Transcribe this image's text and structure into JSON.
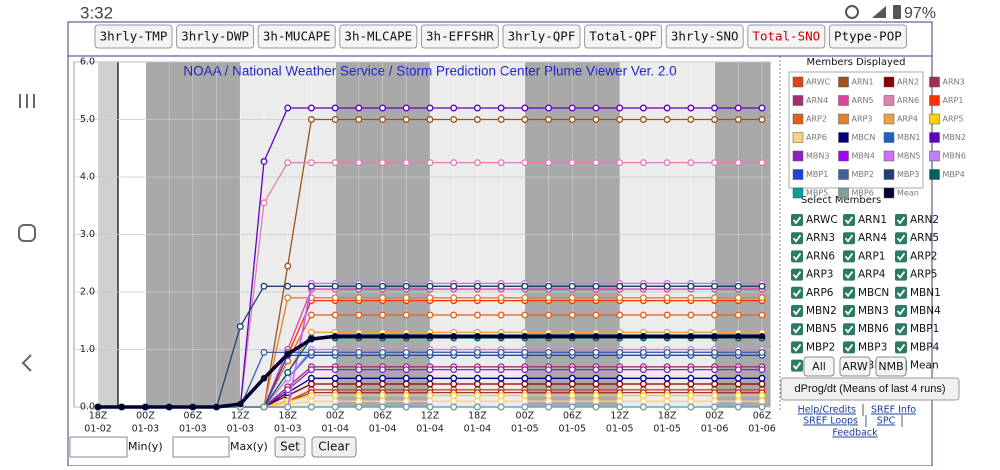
{
  "status_bar": {
    "time": "3:32",
    "battery": "97%"
  },
  "tabs": [
    {
      "label": "3hrly-TMP",
      "selected": false
    },
    {
      "label": "3hrly-DWP",
      "selected": false
    },
    {
      "label": "3h-MUCAPE",
      "selected": false
    },
    {
      "label": "3h-MLCAPE",
      "selected": false
    },
    {
      "label": "3h-EFFSHR",
      "selected": false
    },
    {
      "label": "3hrly-QPF",
      "selected": false
    },
    {
      "label": "Total-QPF",
      "selected": false
    },
    {
      "label": "3hrly-SNO",
      "selected": false
    },
    {
      "label": "Total-SNO",
      "selected": true
    },
    {
      "label": "Ptype-POP",
      "selected": false
    }
  ],
  "chart_data": {
    "type": "line",
    "title": "NOAA / National Weather Service / Storm Prediction Center Plume Viewer Ver. 2.0",
    "x_hours": [
      "18Z",
      null,
      "00Z",
      null,
      "06Z",
      null,
      "12Z",
      null,
      "18Z",
      null,
      "00Z",
      null,
      "06Z",
      null,
      "12Z",
      null,
      "18Z",
      null,
      "00Z",
      null,
      "06Z",
      null,
      "12Z",
      null,
      "18Z",
      null,
      "00Z",
      null,
      "06Z"
    ],
    "x_dates": [
      "01-02",
      null,
      "01-03",
      null,
      "01-03",
      null,
      "01-03",
      null,
      "01-03",
      null,
      "01-04",
      null,
      "01-04",
      null,
      "01-04",
      null,
      "01-04",
      null,
      "01-05",
      null,
      "01-05",
      null,
      "01-05",
      null,
      "01-05",
      null,
      "01-06",
      null,
      "01-06"
    ],
    "ylim": [
      0,
      6
    ],
    "yticks": [
      {
        "value": 0,
        "label": "0.0"
      },
      {
        "value": 1,
        "label": "1.0"
      },
      {
        "value": 2,
        "label": "2.0"
      },
      {
        "value": 3,
        "label": "3.0"
      },
      {
        "value": 4,
        "label": "4.0"
      },
      {
        "value": 5,
        "label": "5.0"
      },
      {
        "value": 6,
        "label": "6.0"
      }
    ],
    "grid": true,
    "legend_title": "Members Displayed",
    "series": [
      {
        "name": "ARWC",
        "color": "#e0401a",
        "values": [
          0,
          0,
          0,
          0,
          0,
          0,
          0,
          0,
          0.1,
          0.3,
          0.3,
          0.3,
          0.3,
          0.3,
          0.3,
          0.3,
          0.3,
          0.3,
          0.3,
          0.3,
          0.3,
          0.3,
          0.3,
          0.3,
          0.3,
          0.3,
          0.3,
          0.3,
          0.3
        ]
      },
      {
        "name": "ARN1",
        "color": "#a0521a",
        "values": [
          0,
          0,
          0,
          0,
          0,
          0,
          0,
          0,
          2.45,
          5,
          5,
          5,
          5,
          5,
          5,
          5,
          5,
          5,
          5,
          5,
          5,
          5,
          5,
          5,
          5,
          5,
          5,
          5,
          5
        ]
      },
      {
        "name": "ARN2",
        "color": "#8b0000",
        "values": [
          0,
          0,
          0,
          0,
          0,
          0,
          0,
          0,
          0.2,
          0.4,
          0.4,
          0.4,
          0.4,
          0.4,
          0.4,
          0.4,
          0.4,
          0.4,
          0.4,
          0.4,
          0.4,
          0.4,
          0.4,
          0.4,
          0.4,
          0.4,
          0.4,
          0.4,
          0.4
        ]
      },
      {
        "name": "ARN3",
        "color": "#a0304a",
        "values": [
          0,
          0,
          0,
          0,
          0,
          0,
          0,
          0,
          0.1,
          0.25,
          0.25,
          0.25,
          0.25,
          0.25,
          0.25,
          0.25,
          0.25,
          0.25,
          0.25,
          0.25,
          0.25,
          0.25,
          0.25,
          0.25,
          0.25,
          0.25,
          0.25,
          0.25,
          0.25
        ]
      },
      {
        "name": "ARN4",
        "color": "#a03070",
        "values": [
          0,
          0,
          0,
          0,
          0,
          0,
          0,
          0,
          0.35,
          0.7,
          0.7,
          0.7,
          0.7,
          0.7,
          0.7,
          0.7,
          0.7,
          0.7,
          0.7,
          0.7,
          0.7,
          0.7,
          0.7,
          0.7,
          0.7,
          0.7,
          0.7,
          0.7,
          0.7
        ]
      },
      {
        "name": "ARN5",
        "color": "#e040a0",
        "values": [
          0,
          0,
          0,
          0,
          0,
          0,
          0,
          0,
          1.0,
          2.05,
          2.05,
          2.05,
          2.05,
          2.05,
          2.05,
          2.05,
          2.05,
          2.05,
          2.05,
          2.05,
          2.05,
          2.05,
          2.05,
          2.05,
          2.05,
          2.05,
          2.05,
          2.05,
          2.05
        ]
      },
      {
        "name": "ARN6",
        "color": "#e080b0",
        "values": [
          0,
          0,
          0,
          0,
          0,
          0,
          0,
          3.55,
          4.25,
          4.25,
          4.25,
          4.25,
          4.25,
          4.25,
          4.25,
          4.25,
          4.25,
          4.25,
          4.25,
          4.25,
          4.25,
          4.25,
          4.25,
          4.25,
          4.25,
          4.25,
          4.25,
          4.25,
          4.25
        ]
      },
      {
        "name": "ARP1",
        "color": "#ff3000",
        "values": [
          0,
          0,
          0,
          0,
          0,
          0,
          0,
          0,
          0.9,
          1.85,
          1.85,
          1.85,
          1.85,
          1.85,
          1.85,
          1.85,
          1.85,
          1.85,
          1.85,
          1.85,
          1.85,
          1.85,
          1.85,
          1.85,
          1.85,
          1.85,
          1.85,
          1.85,
          1.85
        ]
      },
      {
        "name": "ARP2",
        "color": "#e06020",
        "values": [
          0,
          0,
          0,
          0,
          0,
          0,
          0,
          0,
          0.8,
          1.6,
          1.6,
          1.6,
          1.6,
          1.6,
          1.6,
          1.6,
          1.6,
          1.6,
          1.6,
          1.6,
          1.6,
          1.6,
          1.6,
          1.6,
          1.6,
          1.6,
          1.6,
          1.6,
          1.6
        ]
      },
      {
        "name": "ARP3",
        "color": "#e08030",
        "values": [
          0,
          0,
          0,
          0,
          0,
          0,
          0,
          0,
          1.9,
          1.9,
          1.9,
          1.9,
          1.9,
          1.9,
          1.9,
          1.9,
          1.9,
          1.9,
          1.9,
          1.9,
          1.9,
          1.9,
          1.9,
          1.9,
          1.9,
          1.9,
          1.9,
          1.9,
          1.9
        ]
      },
      {
        "name": "ARP4",
        "color": "#f0a040",
        "values": [
          0,
          0,
          0,
          0,
          0,
          0,
          0,
          0,
          0.6,
          1.3,
          1.3,
          1.3,
          1.3,
          1.3,
          1.3,
          1.3,
          1.3,
          1.3,
          1.3,
          1.3,
          1.3,
          1.3,
          1.3,
          1.3,
          1.3,
          1.3,
          1.3,
          1.3,
          1.3
        ]
      },
      {
        "name": "ARP5",
        "color": "#ffd000",
        "values": [
          0,
          0,
          0,
          0,
          0,
          0,
          0,
          0,
          0.1,
          0.2,
          0.2,
          0.2,
          0.2,
          0.2,
          0.2,
          0.2,
          0.2,
          0.2,
          0.2,
          0.2,
          0.2,
          0.2,
          0.2,
          0.2,
          0.2,
          0.2,
          0.2,
          0.2,
          0.2
        ]
      },
      {
        "name": "ARP6",
        "color": "#ffd080",
        "values": [
          0,
          0,
          0,
          0,
          0,
          0,
          0,
          0,
          0.05,
          0.1,
          0.1,
          0.1,
          0.1,
          0.1,
          0.1,
          0.1,
          0.1,
          0.1,
          0.1,
          0.1,
          0.1,
          0.1,
          0.1,
          0.1,
          0.1,
          0.1,
          0.1,
          0.1,
          0.1
        ]
      },
      {
        "name": "MBCN",
        "color": "#000080",
        "values": [
          0,
          0,
          0,
          0,
          0,
          0,
          0,
          0,
          0.25,
          0.5,
          0.5,
          0.5,
          0.5,
          0.5,
          0.5,
          0.5,
          0.5,
          0.5,
          0.5,
          0.5,
          0.5,
          0.5,
          0.5,
          0.5,
          0.5,
          0.5,
          0.5,
          0.5,
          0.5
        ]
      },
      {
        "name": "MBN1",
        "color": "#2060c0",
        "values": [
          0,
          0,
          0,
          0,
          0,
          0,
          0,
          0,
          0.5,
          0.95,
          0.95,
          0.95,
          0.95,
          0.95,
          0.95,
          0.95,
          0.95,
          0.95,
          0.95,
          0.95,
          0.95,
          0.95,
          0.95,
          0.95,
          0.95,
          0.95,
          0.95,
          0.95,
          0.95
        ]
      },
      {
        "name": "MBN2",
        "color": "#6000c0",
        "values": [
          0,
          0,
          0,
          0,
          0,
          0,
          0,
          4.27,
          5.2,
          5.2,
          5.2,
          5.2,
          5.2,
          5.2,
          5.2,
          5.2,
          5.2,
          5.2,
          5.2,
          5.2,
          5.2,
          5.2,
          5.2,
          5.2,
          5.2,
          5.2,
          5.2,
          5.2,
          5.2
        ]
      },
      {
        "name": "MBN3",
        "color": "#9020c0",
        "values": [
          0,
          0,
          0,
          0,
          0,
          0,
          0,
          0,
          0.3,
          0.65,
          0.65,
          0.65,
          0.65,
          0.65,
          0.65,
          0.65,
          0.65,
          0.65,
          0.65,
          0.65,
          0.65,
          0.65,
          0.65,
          0.65,
          0.65,
          0.65,
          0.65,
          0.65,
          0.65
        ]
      },
      {
        "name": "MBN4",
        "color": "#a000ff",
        "values": [
          0,
          0,
          0,
          0,
          0,
          0,
          0,
          0,
          0,
          2.1,
          2.1,
          2.1,
          2.1,
          2.1,
          2.1,
          2.1,
          2.1,
          2.1,
          2.1,
          2.1,
          2.1,
          2.1,
          2.1,
          2.1,
          2.1,
          2.1,
          2.1,
          2.1,
          2.1
        ]
      },
      {
        "name": "MBN5",
        "color": "#d070ff",
        "values": [
          0,
          0,
          0,
          0,
          0,
          0,
          0,
          0,
          0,
          2.15,
          2.15,
          2.15,
          2.15,
          2.15,
          2.15,
          2.15,
          2.15,
          2.15,
          2.15,
          2.15,
          2.15,
          2.15,
          2.15,
          2.15,
          2.15,
          2.15,
          2.15,
          2.15,
          2.15
        ]
      },
      {
        "name": "MBN6",
        "color": "#c080ff",
        "values": [
          0,
          0,
          0,
          0,
          0,
          0,
          0,
          0,
          0.5,
          1.0,
          1.0,
          1.0,
          1.0,
          1.0,
          1.0,
          1.0,
          1.0,
          1.0,
          1.0,
          1.0,
          1.0,
          1.0,
          1.0,
          1.0,
          1.0,
          1.0,
          1.0,
          1.0,
          1.0
        ]
      },
      {
        "name": "MBP1",
        "color": "#2040e0",
        "values": [
          0,
          0,
          0,
          0,
          0,
          0,
          0,
          0,
          0.9,
          0.9,
          0.9,
          0.9,
          0.9,
          0.9,
          0.9,
          0.9,
          0.9,
          0.9,
          0.9,
          0.9,
          0.9,
          0.9,
          0.9,
          0.9,
          0.9,
          0.9,
          0.9,
          0.9,
          0.9
        ]
      },
      {
        "name": "MBP2",
        "color": "#4060a0",
        "values": [
          0,
          0,
          0,
          0,
          0,
          0,
          0,
          0.95,
          0.95,
          0.95,
          0.95,
          0.95,
          0.95,
          0.95,
          0.95,
          0.95,
          0.95,
          0.95,
          0.95,
          0.95,
          0.95,
          0.95,
          0.95,
          0.95,
          0.95,
          0.95,
          0.95,
          0.95,
          0.95
        ]
      },
      {
        "name": "MBP3",
        "color": "#204070",
        "values": [
          0,
          0,
          0,
          0,
          0,
          0,
          1.4,
          2.1,
          2.1,
          2.1,
          2.1,
          2.1,
          2.1,
          2.1,
          2.1,
          2.1,
          2.1,
          2.1,
          2.1,
          2.1,
          2.1,
          2.1,
          2.1,
          2.1,
          2.1,
          2.1,
          2.1,
          2.1,
          2.1
        ]
      },
      {
        "name": "MBP4",
        "color": "#006060",
        "values": [
          0,
          0,
          0,
          0,
          0,
          0,
          0,
          0,
          0.6,
          1.2,
          1.2,
          1.2,
          1.2,
          1.2,
          1.2,
          1.2,
          1.2,
          1.2,
          1.2,
          1.2,
          1.2,
          1.2,
          1.2,
          1.2,
          1.2,
          1.2,
          1.2,
          1.2,
          1.2
        ]
      },
      {
        "name": "MBP5",
        "color": "#00a0a0",
        "values": [
          0,
          0,
          0,
          0,
          0,
          0,
          0,
          0,
          0,
          0,
          0,
          0,
          0,
          0,
          0,
          0,
          0,
          0,
          0,
          0,
          0,
          0,
          0,
          0,
          0,
          0,
          0,
          0,
          0
        ]
      },
      {
        "name": "MBP6",
        "color": "#80a0a0",
        "values": [
          0,
          0,
          0,
          0,
          0,
          0,
          0,
          0,
          0,
          0,
          0,
          0,
          0,
          0,
          0,
          0,
          0,
          0,
          0,
          0,
          0,
          0,
          0,
          0,
          0,
          0,
          0,
          0,
          0
        ]
      },
      {
        "name": "Mean",
        "color": "#000030",
        "values": [
          0,
          0,
          0,
          0,
          0,
          0,
          0.05,
          0.5,
          0.92,
          1.18,
          1.23,
          1.23,
          1.23,
          1.23,
          1.23,
          1.23,
          1.23,
          1.23,
          1.23,
          1.23,
          1.23,
          1.23,
          1.23,
          1.23,
          1.23,
          1.23,
          1.23,
          1.23,
          1.23
        ]
      }
    ]
  },
  "panel": {
    "select_title": "Select Members",
    "buttons": [
      "All",
      "ARW",
      "NMB"
    ],
    "dprog": "dProg/dt (Means of last 4 runs)",
    "links": [
      "Help/Credits",
      "SREF Info",
      "SREF Loops",
      "SPC",
      "Feedback"
    ]
  },
  "controls": {
    "min_label": "Min(y)",
    "max_label": "Max(y)",
    "set": "Set",
    "clear": "Clear"
  }
}
